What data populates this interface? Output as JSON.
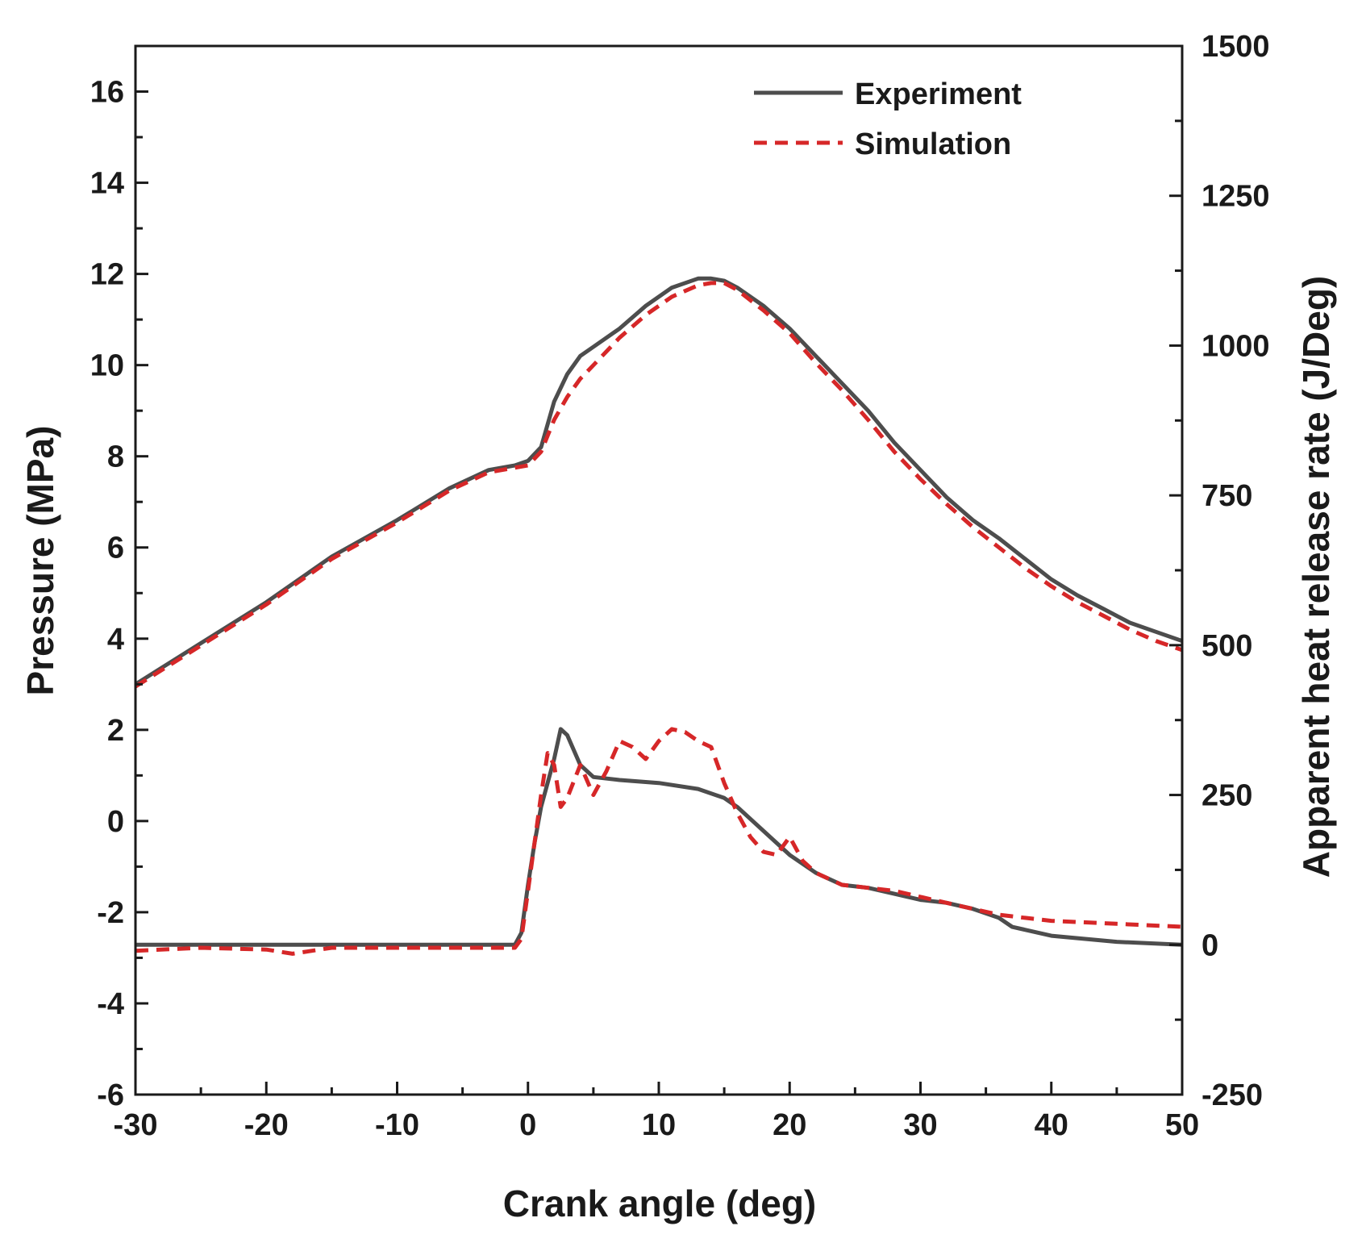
{
  "chart_data": {
    "type": "line",
    "title": "",
    "xlabel": "Crank angle (deg)",
    "ylabel_left": "Pressure (MPa)",
    "ylabel_right": "Apparent heat release rate (J/Deg)",
    "xlim": [
      -30,
      50
    ],
    "ylim_left": [
      -6,
      17
    ],
    "ylim_right": [
      -250,
      1500
    ],
    "x_ticks": [
      "-30",
      "-20",
      "-10",
      "0",
      "10",
      "20",
      "30",
      "40",
      "50"
    ],
    "y_left_ticks": [
      "-6",
      "-4",
      "-2",
      "0",
      "2",
      "4",
      "6",
      "8",
      "10",
      "12",
      "14",
      "16"
    ],
    "y_right_ticks": [
      "-250",
      "0",
      "250",
      "500",
      "750",
      "1000",
      "1250",
      "1500"
    ],
    "legend_position": "top-right",
    "colors": {
      "experiment": "#4d4d4d",
      "simulation": "#d62728",
      "axis": "#1a1a1a"
    },
    "series": [
      {
        "name": "Experiment",
        "axis": "left",
        "style": "solid",
        "x": [
          -30,
          -25,
          -20,
          -15,
          -10,
          -6,
          -3,
          -1,
          0,
          1,
          2,
          3,
          4,
          5,
          7,
          9,
          11,
          13,
          14,
          15,
          16,
          18,
          20,
          22,
          24,
          26,
          28,
          30,
          32,
          34,
          36,
          38,
          40,
          42,
          44,
          46,
          48,
          50
        ],
        "y": [
          3.0,
          3.9,
          4.8,
          5.8,
          6.6,
          7.3,
          7.7,
          7.8,
          7.9,
          8.2,
          9.2,
          9.8,
          10.2,
          10.4,
          10.8,
          11.3,
          11.7,
          11.9,
          11.9,
          11.85,
          11.7,
          11.3,
          10.8,
          10.2,
          9.6,
          9.0,
          8.3,
          7.7,
          7.1,
          6.6,
          6.2,
          5.75,
          5.3,
          4.95,
          4.65,
          4.35,
          4.15,
          3.95
        ]
      },
      {
        "name": "Simulation",
        "axis": "left",
        "style": "dashed",
        "x": [
          -30,
          -25,
          -20,
          -15,
          -10,
          -6,
          -3,
          -1,
          0,
          1,
          2,
          3,
          4,
          5,
          7,
          9,
          11,
          13,
          14,
          15,
          16,
          18,
          20,
          22,
          24,
          26,
          28,
          30,
          32,
          34,
          36,
          38,
          40,
          42,
          44,
          46,
          48,
          50
        ],
        "y": [
          2.95,
          3.85,
          4.75,
          5.75,
          6.55,
          7.25,
          7.65,
          7.75,
          7.8,
          8.1,
          8.8,
          9.3,
          9.7,
          10.0,
          10.6,
          11.1,
          11.5,
          11.75,
          11.8,
          11.8,
          11.65,
          11.2,
          10.7,
          10.05,
          9.45,
          8.8,
          8.1,
          7.5,
          6.95,
          6.45,
          6.0,
          5.55,
          5.15,
          4.8,
          4.5,
          4.2,
          3.95,
          3.75
        ]
      },
      {
        "name": "Experiment",
        "axis": "right",
        "style": "solid",
        "x": [
          -30,
          -20,
          -10,
          -1,
          -0.5,
          0,
          0.5,
          1,
          1.5,
          2,
          2.5,
          3,
          4,
          5,
          7,
          10,
          13,
          15,
          16,
          18,
          20,
          22,
          24,
          26,
          28,
          30,
          32,
          34,
          36,
          37,
          40,
          45,
          50
        ],
        "y": [
          0,
          0,
          0,
          0,
          20,
          100,
          170,
          230,
          270,
          310,
          360,
          350,
          300,
          280,
          275,
          270,
          260,
          245,
          230,
          190,
          150,
          120,
          100,
          95,
          85,
          75,
          70,
          60,
          45,
          30,
          15,
          5,
          0
        ]
      },
      {
        "name": "Simulation",
        "axis": "right",
        "style": "dashed",
        "x": [
          -30,
          -25,
          -20,
          -18,
          -15,
          -10,
          -5,
          -1,
          -0.5,
          0,
          0.5,
          1,
          1.5,
          2,
          2.5,
          3,
          4,
          5,
          6,
          7,
          8,
          9,
          10,
          11,
          12,
          13,
          14,
          15,
          16,
          17,
          18,
          19,
          20,
          21,
          22,
          24,
          26,
          28,
          30,
          32,
          34,
          36,
          38,
          40,
          45,
          50
        ],
        "y": [
          -10,
          -5,
          -8,
          -15,
          -5,
          -5,
          -5,
          -5,
          10,
          90,
          170,
          250,
          320,
          300,
          230,
          245,
          300,
          250,
          290,
          340,
          330,
          310,
          340,
          360,
          355,
          340,
          330,
          270,
          220,
          180,
          155,
          150,
          180,
          140,
          120,
          100,
          95,
          90,
          80,
          70,
          60,
          50,
          45,
          40,
          35,
          30
        ]
      }
    ]
  }
}
